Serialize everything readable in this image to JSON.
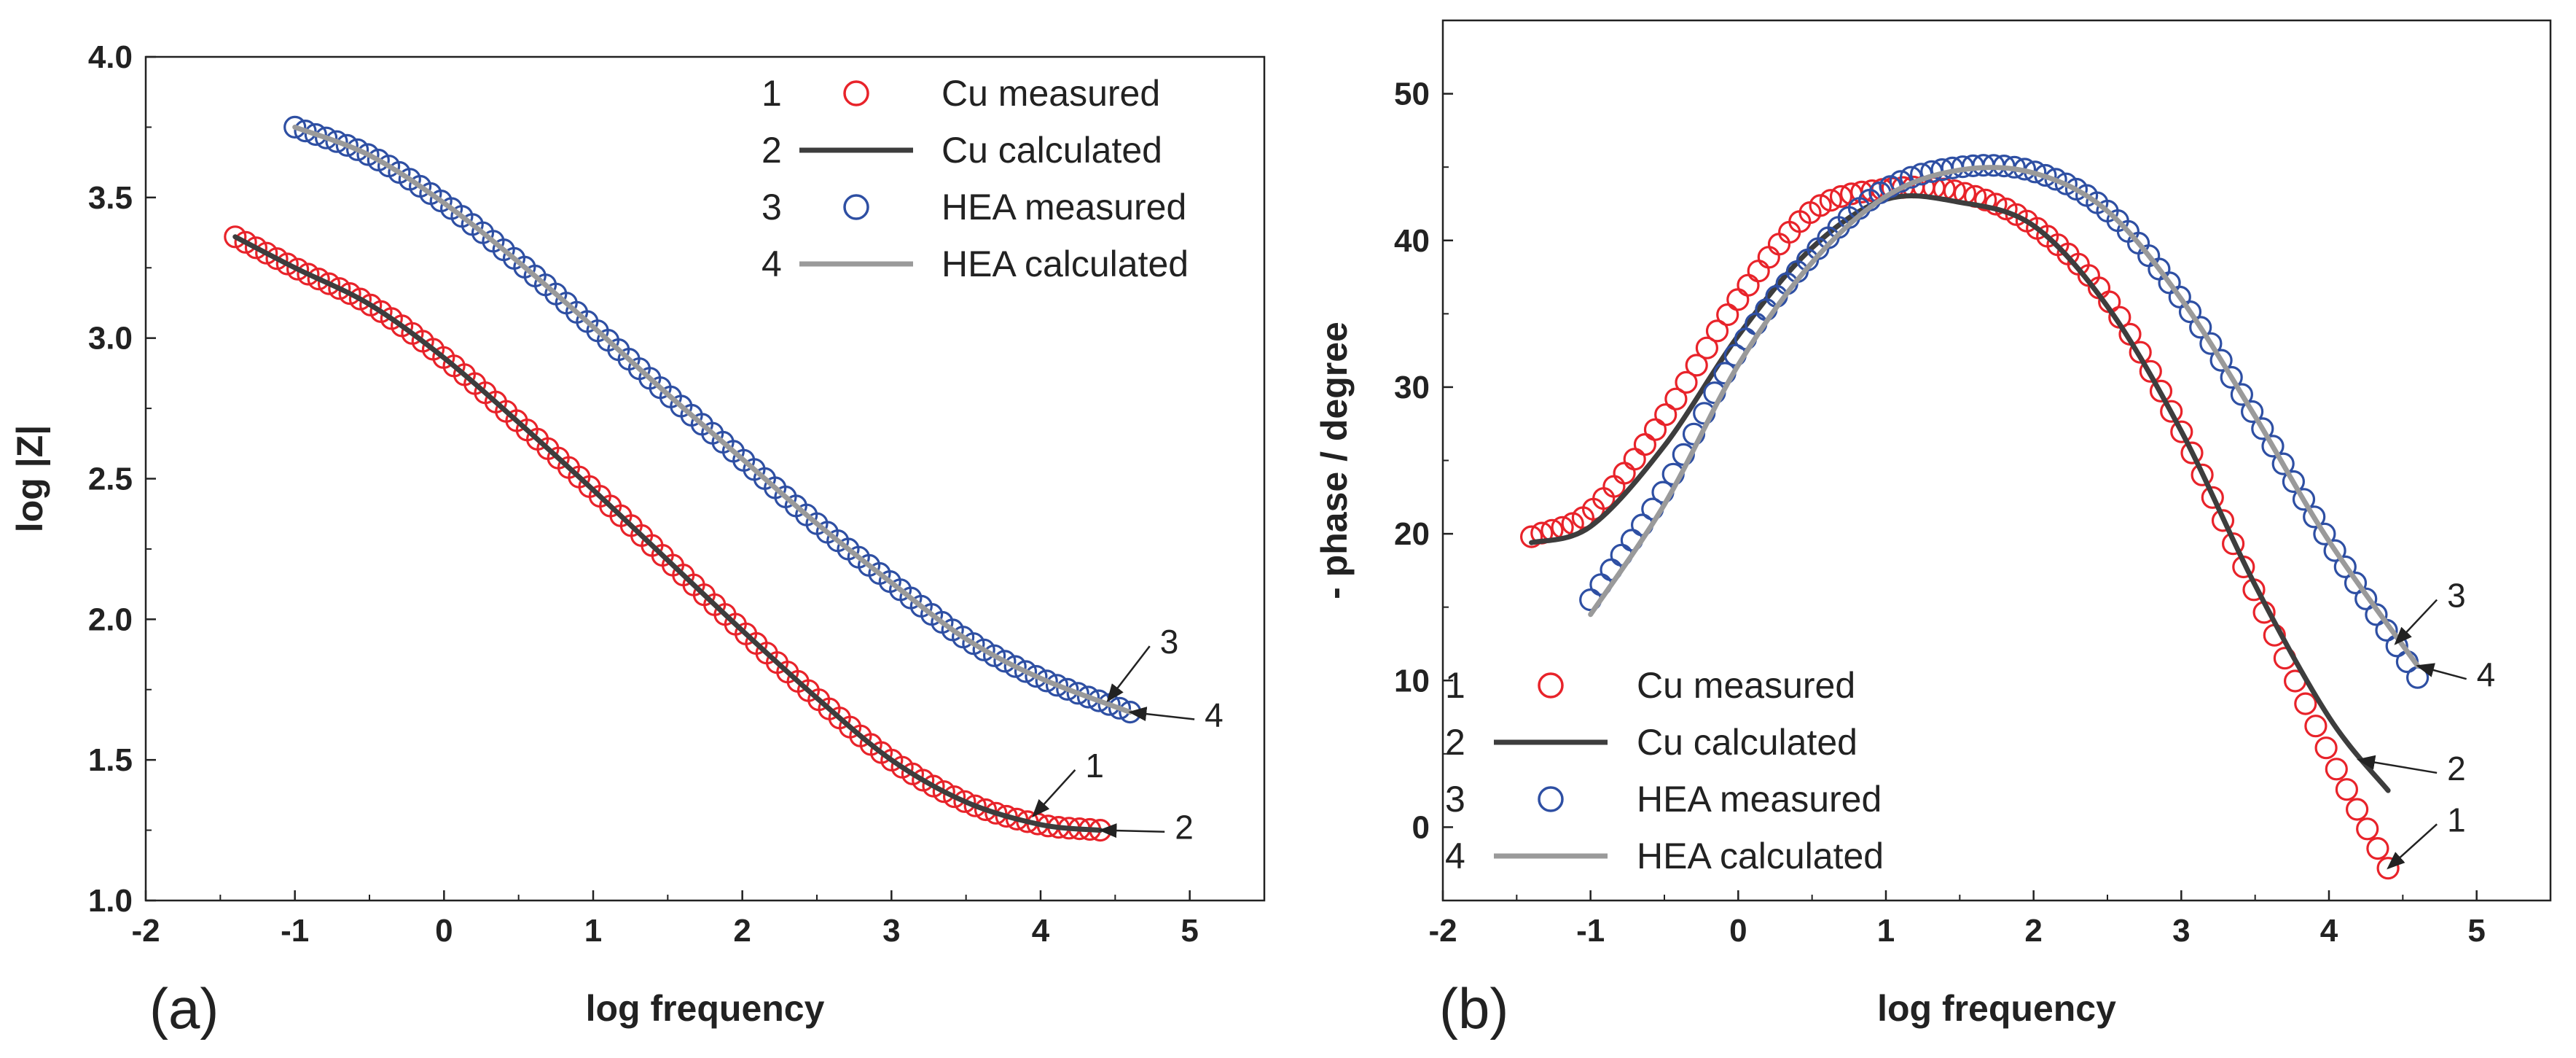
{
  "chart_data": [
    {
      "type": "line",
      "panel_label": "(a)",
      "xlabel": "log frequency",
      "ylabel": "log |Z|",
      "xlim": [
        -2,
        5.5
      ],
      "ylim": [
        1.0,
        4.0
      ],
      "xticks": [
        -2,
        -1,
        0,
        1,
        2,
        3,
        4,
        5
      ],
      "yticks": [
        1.0,
        1.5,
        2.0,
        2.5,
        3.0,
        3.5,
        4.0
      ],
      "xtick_labels": [
        "-2",
        "-1",
        "0",
        "1",
        "2",
        "3",
        "4",
        "5"
      ],
      "ytick_labels": [
        "1.0",
        "1.5",
        "2.0",
        "2.5",
        "3.0",
        "3.5",
        "4.0"
      ],
      "legend_position": "top-right",
      "series": [
        {
          "id": "1",
          "name": "Cu measured",
          "kind": "markers",
          "color": "#e8232a",
          "x": [
            -1.4,
            -1.0,
            -0.5,
            0.0,
            0.5,
            1.0,
            1.5,
            2.0,
            2.5,
            3.0,
            3.5,
            4.0,
            4.4
          ],
          "y": [
            3.36,
            3.25,
            3.12,
            2.93,
            2.7,
            2.46,
            2.21,
            1.96,
            1.72,
            1.5,
            1.35,
            1.27,
            1.25
          ]
        },
        {
          "id": "2",
          "name": "Cu calculated",
          "kind": "line",
          "color": "#3d3d3d",
          "x": [
            -1.4,
            -1.0,
            -0.5,
            0.0,
            0.5,
            1.0,
            1.5,
            2.0,
            2.5,
            3.0,
            3.5,
            4.0,
            4.4
          ],
          "y": [
            3.36,
            3.25,
            3.12,
            2.93,
            2.7,
            2.46,
            2.21,
            1.96,
            1.72,
            1.5,
            1.35,
            1.27,
            1.25
          ]
        },
        {
          "id": "3",
          "name": "HEA measured",
          "kind": "markers",
          "color": "#2e4fa3",
          "x": [
            -1.0,
            -0.5,
            0.0,
            0.5,
            1.0,
            1.5,
            2.0,
            2.5,
            3.0,
            3.5,
            4.0,
            4.6
          ],
          "y": [
            3.75,
            3.65,
            3.48,
            3.27,
            3.04,
            2.8,
            2.57,
            2.34,
            2.13,
            1.93,
            1.79,
            1.67
          ]
        },
        {
          "id": "4",
          "name": "HEA calculated",
          "kind": "line",
          "color": "#9a9a9a",
          "x": [
            -1.0,
            -0.5,
            0.0,
            0.5,
            1.0,
            1.5,
            2.0,
            2.5,
            3.0,
            3.5,
            4.0,
            4.6
          ],
          "y": [
            3.75,
            3.65,
            3.48,
            3.27,
            3.04,
            2.8,
            2.57,
            2.34,
            2.13,
            1.93,
            1.79,
            1.67
          ]
        }
      ],
      "callouts": [
        {
          "text": "1",
          "series": "1",
          "label_at": [
            4.3,
            1.48
          ],
          "arrow_to": [
            3.95,
            1.3
          ]
        },
        {
          "text": "2",
          "series": "2",
          "label_at": [
            4.9,
            1.26
          ],
          "arrow_to": [
            4.4,
            1.25
          ]
        },
        {
          "text": "3",
          "series": "3",
          "label_at": [
            4.8,
            1.92
          ],
          "arrow_to": [
            4.45,
            1.71
          ]
        },
        {
          "text": "4",
          "series": "4",
          "label_at": [
            5.1,
            1.66
          ],
          "arrow_to": [
            4.6,
            1.67
          ]
        }
      ]
    },
    {
      "type": "line",
      "panel_label": "(b)",
      "xlabel": "log frequency",
      "ylabel": "- phase / degree",
      "xlim": [
        -2,
        5.5
      ],
      "ylim": [
        -5,
        55
      ],
      "xticks": [
        -2,
        -1,
        0,
        1,
        2,
        3,
        4,
        5
      ],
      "yticks": [
        0,
        10,
        20,
        30,
        40,
        50
      ],
      "xtick_labels": [
        "-2",
        "-1",
        "0",
        "1",
        "2",
        "3",
        "4",
        "5"
      ],
      "ytick_labels": [
        "0",
        "10",
        "20",
        "30",
        "40",
        "50"
      ],
      "legend_position": "bottom-left",
      "series": [
        {
          "id": "1",
          "name": "Cu measured",
          "kind": "markers",
          "color": "#e8232a",
          "x": [
            -1.4,
            -1.0,
            -0.5,
            0.0,
            0.5,
            1.0,
            1.5,
            2.0,
            2.5,
            3.0,
            3.5,
            4.0,
            4.4
          ],
          "y": [
            19.8,
            21.5,
            28.0,
            36.0,
            42.0,
            43.5,
            43.3,
            41.0,
            36.0,
            27.0,
            16.0,
            5.0,
            -2.8
          ]
        },
        {
          "id": "2",
          "name": "Cu calculated",
          "kind": "line",
          "color": "#3d3d3d",
          "x": [
            -1.4,
            -1.0,
            -0.5,
            0.0,
            0.5,
            1.0,
            1.5,
            2.0,
            2.5,
            3.0,
            3.5,
            4.0,
            4.4
          ],
          "y": [
            19.4,
            20.5,
            26.0,
            33.5,
            39.5,
            42.8,
            42.6,
            41.0,
            35.5,
            27.0,
            16.5,
            7.5,
            2.5
          ]
        },
        {
          "id": "3",
          "name": "HEA measured",
          "kind": "markers",
          "color": "#2e4fa3",
          "x": [
            -1.0,
            -0.5,
            0.0,
            0.5,
            1.0,
            1.5,
            2.0,
            2.5,
            3.0,
            3.5,
            4.0,
            4.6
          ],
          "y": [
            15.5,
            23.0,
            32.5,
            39.0,
            43.5,
            45.0,
            44.7,
            42.0,
            36.0,
            28.0,
            19.5,
            10.2
          ]
        },
        {
          "id": "4",
          "name": "HEA calculated",
          "kind": "line",
          "color": "#9a9a9a",
          "x": [
            -1.0,
            -0.5,
            0.0,
            0.5,
            1.0,
            1.5,
            2.0,
            2.5,
            3.0,
            3.5,
            4.0,
            4.6
          ],
          "y": [
            14.5,
            22.0,
            31.5,
            38.5,
            43.0,
            44.8,
            44.6,
            42.0,
            36.0,
            28.0,
            19.5,
            11.0
          ]
        }
      ],
      "callouts": [
        {
          "text": "1",
          "series": "1",
          "label_at": [
            4.8,
            0.5
          ],
          "arrow_to": [
            4.4,
            -2.8
          ]
        },
        {
          "text": "2",
          "series": "2",
          "label_at": [
            4.8,
            4.0
          ],
          "arrow_to": [
            4.2,
            4.6
          ]
        },
        {
          "text": "3",
          "series": "3",
          "label_at": [
            4.8,
            15.8
          ],
          "arrow_to": [
            4.45,
            12.5
          ]
        },
        {
          "text": "4",
          "series": "4",
          "label_at": [
            5.0,
            10.4
          ],
          "arrow_to": [
            4.6,
            11.0
          ]
        }
      ]
    }
  ]
}
